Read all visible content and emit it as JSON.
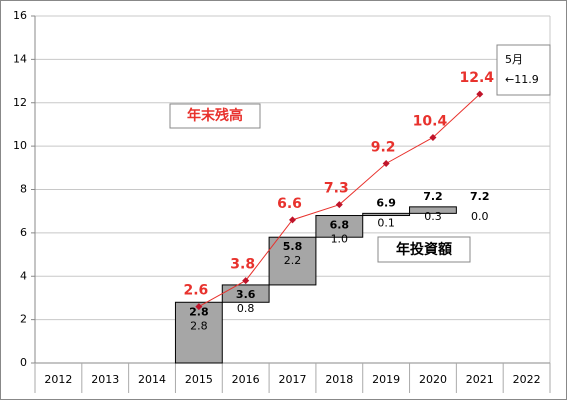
{
  "chart_data": {
    "type": "combo",
    "categories": [
      "2012",
      "2013",
      "2014",
      "2015",
      "2016",
      "2017",
      "2018",
      "2019",
      "2020",
      "2021",
      "2022"
    ],
    "ylim": [
      0,
      16
    ],
    "yticks": [
      0,
      2,
      4,
      6,
      8,
      10,
      12,
      14,
      16
    ],
    "grid": true,
    "series": [
      {
        "name": "年投資額",
        "type": "waterfall",
        "color": "#a6a6a6",
        "values": [
          null,
          null,
          null,
          2.8,
          0.8,
          2.2,
          1.0,
          0.1,
          0.3,
          0.0,
          null
        ],
        "value_labels": [
          null,
          null,
          null,
          "2.8",
          "0.8",
          "2.2",
          "1.0",
          "0.1",
          "0.3",
          "0.0",
          null
        ],
        "totals": [
          null,
          null,
          null,
          2.8,
          3.6,
          5.8,
          6.8,
          6.9,
          7.2,
          7.2,
          null
        ],
        "total_labels": [
          null,
          null,
          null,
          "2.8",
          "3.6",
          "5.8",
          "6.8",
          "6.9",
          "7.2",
          "7.2",
          null
        ]
      },
      {
        "name": "年末残高",
        "type": "line",
        "color": "#e8322d",
        "values": [
          null,
          null,
          null,
          2.6,
          3.8,
          6.6,
          7.3,
          9.2,
          10.4,
          12.4,
          null
        ]
      }
    ],
    "annotation": [
      "5月",
      "←11.9"
    ]
  }
}
